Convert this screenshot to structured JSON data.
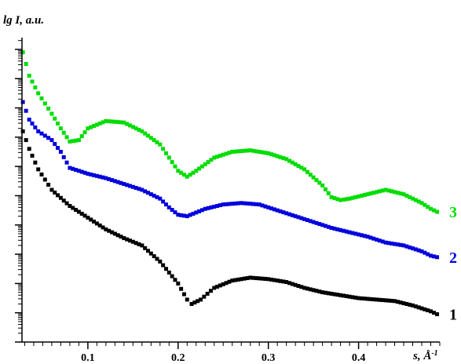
{
  "chart_data": {
    "type": "scatter",
    "title": "",
    "ylabel": "lg I, a.u.",
    "xlabel": "s, Å",
    "xlabel_sup": "-1",
    "xlim": [
      0.027,
      0.49
    ],
    "ylim": [
      0,
      10.4
    ],
    "x_ticks": [
      0.1,
      0.2,
      0.3,
      0.4
    ],
    "x_tick_labels": [
      "0.1",
      "0.2",
      "0.3",
      "0.4"
    ],
    "y_tick_labels_shown": false,
    "grid": false,
    "legend": "curve labels at right end of each series",
    "series": [
      {
        "name": "1",
        "color": "#000000",
        "points": [
          [
            0.028,
            7.2
          ],
          [
            0.035,
            6.6
          ],
          [
            0.045,
            5.9
          ],
          [
            0.06,
            5.2
          ],
          [
            0.08,
            4.65
          ],
          [
            0.1,
            4.25
          ],
          [
            0.12,
            3.85
          ],
          [
            0.14,
            3.55
          ],
          [
            0.16,
            3.3
          ],
          [
            0.18,
            2.75
          ],
          [
            0.2,
            2.0
          ],
          [
            0.21,
            1.45
          ],
          [
            0.215,
            1.3
          ],
          [
            0.225,
            1.45
          ],
          [
            0.24,
            1.85
          ],
          [
            0.26,
            2.1
          ],
          [
            0.28,
            2.2
          ],
          [
            0.3,
            2.15
          ],
          [
            0.32,
            2.05
          ],
          [
            0.34,
            1.85
          ],
          [
            0.36,
            1.7
          ],
          [
            0.38,
            1.6
          ],
          [
            0.4,
            1.5
          ],
          [
            0.42,
            1.45
          ],
          [
            0.44,
            1.4
          ],
          [
            0.46,
            1.25
          ],
          [
            0.48,
            1.05
          ],
          [
            0.487,
            0.95
          ]
        ]
      },
      {
        "name": "2",
        "color": "#0000dd",
        "points": [
          [
            0.028,
            8.2
          ],
          [
            0.035,
            7.6
          ],
          [
            0.045,
            7.2
          ],
          [
            0.06,
            6.9
          ],
          [
            0.07,
            6.5
          ],
          [
            0.08,
            5.95
          ],
          [
            0.1,
            5.75
          ],
          [
            0.12,
            5.6
          ],
          [
            0.14,
            5.4
          ],
          [
            0.16,
            5.2
          ],
          [
            0.18,
            4.9
          ],
          [
            0.19,
            4.6
          ],
          [
            0.2,
            4.35
          ],
          [
            0.21,
            4.3
          ],
          [
            0.23,
            4.55
          ],
          [
            0.25,
            4.7
          ],
          [
            0.27,
            4.75
          ],
          [
            0.29,
            4.7
          ],
          [
            0.31,
            4.5
          ],
          [
            0.33,
            4.3
          ],
          [
            0.35,
            4.1
          ],
          [
            0.37,
            3.9
          ],
          [
            0.39,
            3.75
          ],
          [
            0.41,
            3.6
          ],
          [
            0.43,
            3.4
          ],
          [
            0.45,
            3.3
          ],
          [
            0.47,
            3.1
          ],
          [
            0.48,
            2.95
          ],
          [
            0.487,
            2.9
          ]
        ]
      },
      {
        "name": "3",
        "color": "#00dd00",
        "points": [
          [
            0.028,
            9.9
          ],
          [
            0.035,
            9.1
          ],
          [
            0.045,
            8.5
          ],
          [
            0.06,
            7.8
          ],
          [
            0.07,
            7.3
          ],
          [
            0.08,
            6.85
          ],
          [
            0.09,
            6.9
          ],
          [
            0.1,
            7.3
          ],
          [
            0.12,
            7.55
          ],
          [
            0.14,
            7.5
          ],
          [
            0.16,
            7.2
          ],
          [
            0.18,
            6.75
          ],
          [
            0.19,
            6.3
          ],
          [
            0.2,
            5.85
          ],
          [
            0.21,
            5.65
          ],
          [
            0.22,
            5.85
          ],
          [
            0.24,
            6.3
          ],
          [
            0.26,
            6.5
          ],
          [
            0.28,
            6.55
          ],
          [
            0.3,
            6.45
          ],
          [
            0.32,
            6.25
          ],
          [
            0.34,
            5.9
          ],
          [
            0.36,
            5.35
          ],
          [
            0.37,
            4.95
          ],
          [
            0.38,
            4.85
          ],
          [
            0.39,
            4.9
          ],
          [
            0.41,
            5.05
          ],
          [
            0.43,
            5.2
          ],
          [
            0.45,
            5.05
          ],
          [
            0.47,
            4.75
          ],
          [
            0.48,
            4.55
          ],
          [
            0.487,
            4.45
          ]
        ]
      }
    ]
  }
}
